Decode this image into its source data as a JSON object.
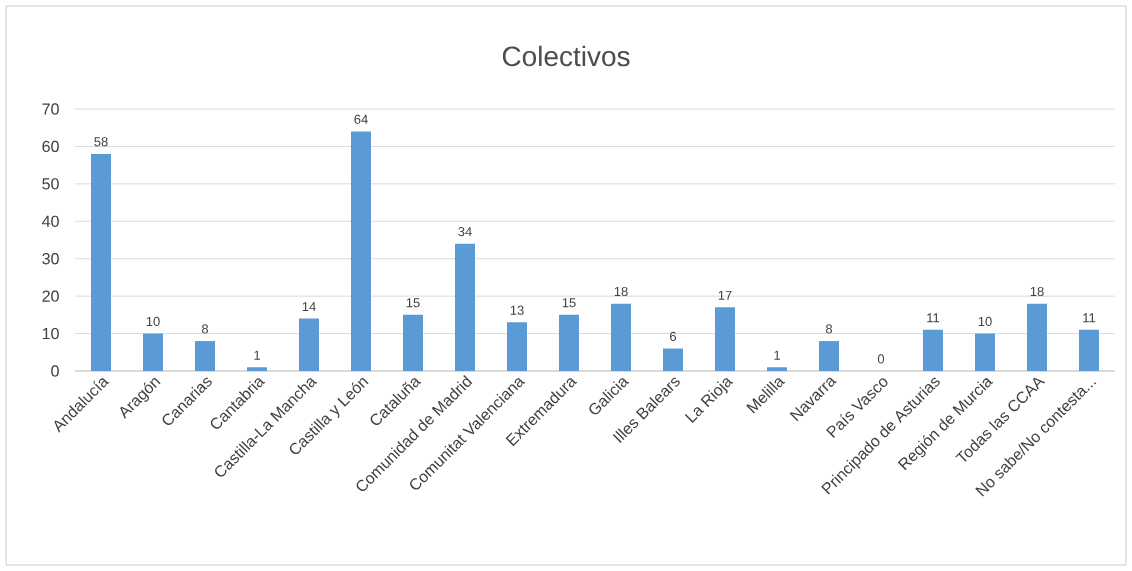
{
  "chart_data": {
    "type": "bar",
    "title": "Colectivos",
    "categories": [
      "Andalucía",
      "Aragón",
      "Canarias",
      "Cantabria",
      "Castilla-La Mancha",
      "Castilla y León",
      "Cataluña",
      "Comunidad de Madrid",
      "Comunitat Valenciana",
      "Extremadura",
      "Galicia",
      "Illes Balears",
      "La Rioja",
      "Melilla",
      "Navarra",
      "País Vasco",
      "Principado de Asturias",
      "Región de Murcia",
      "Todas las CCAA",
      "No sabe/No contesta..."
    ],
    "values": [
      58,
      10,
      8,
      1,
      14,
      64,
      15,
      34,
      13,
      15,
      18,
      6,
      17,
      1,
      8,
      0,
      11,
      10,
      18,
      11
    ],
    "color": "#5b9bd5",
    "ylim": [
      0,
      70
    ],
    "yticks": [
      0,
      10,
      20,
      30,
      40,
      50,
      60,
      70
    ],
    "grid": "y",
    "data_labels": true
  }
}
